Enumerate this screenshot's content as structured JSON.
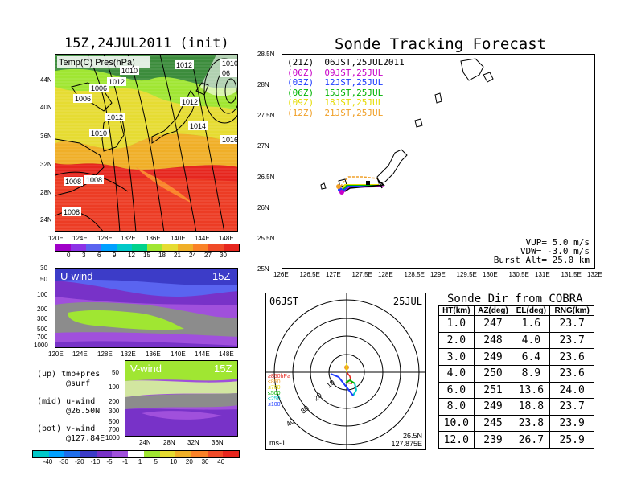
{
  "titles": {
    "map_init": "15Z,24JUL2011 (init)",
    "track": "Sonde Tracking Forecast",
    "cobra": "Sonde Dir from COBRA"
  },
  "map_panel": {
    "label": "Temp(C) Pres(hPa)",
    "isobar_labels": [
      "1012",
      "1010",
      "1012",
      "1006",
      "1006",
      "1012",
      "1010",
      "1008",
      "1008",
      "1012",
      "1014",
      "1010",
      "1016",
      "06",
      "1008"
    ],
    "xticks": [
      "120E",
      "124E",
      "128E",
      "132E",
      "136E",
      "140E",
      "144E",
      "148E"
    ],
    "yticks": [
      "44N",
      "40N",
      "36N",
      "32N",
      "28N",
      "24N"
    ],
    "colorbar": [
      "0",
      "3",
      "6",
      "9",
      "12",
      "15",
      "18",
      "21",
      "24",
      "27",
      "30"
    ],
    "colorbar_colors": [
      "#a000c8",
      "#8c32e6",
      "#5a64f0",
      "#00a0ff",
      "#00c8c8",
      "#00d28c",
      "#a0e632",
      "#e6dc32",
      "#f0af28",
      "#fa8228",
      "#f04b28",
      "#e6261e"
    ]
  },
  "uwind_panel": {
    "label": "U-wind",
    "time": "15Z",
    "yticks": [
      "30",
      "50",
      "100",
      "200",
      "300",
      "500",
      "700",
      "1000"
    ],
    "xticks": [
      "120E",
      "124E",
      "128E",
      "132E",
      "136E",
      "140E",
      "144E",
      "148E"
    ]
  },
  "vwind_panel": {
    "label": "V-wind",
    "time": "15Z",
    "yticks": [
      "50",
      "100",
      "200",
      "300",
      "500",
      "700",
      "1000"
    ],
    "xticks": [
      "24N",
      "28N",
      "32N",
      "36N"
    ],
    "colorbar": [
      "-40",
      "-30",
      "-20",
      "-10",
      "-5",
      "-1",
      "1",
      "5",
      "10",
      "20",
      "30",
      "40"
    ],
    "colorbar_colors": [
      "#00c8c8",
      "#00a0ff",
      "#1e6eeb",
      "#3c3cc8",
      "#7832c8",
      "#a050dc",
      "#ffffff",
      "#a0e632",
      "#e6dc32",
      "#f0af28",
      "#fa8228",
      "#f04b28",
      "#e6261e"
    ]
  },
  "legend_text": [
    {
      "a": "(up) tmp+pres",
      "b": "@surf"
    },
    {
      "a": "(mid) u-wind",
      "b": "@26.50N"
    },
    {
      "a": "(bot) v-wind",
      "b": "@127.84E"
    }
  ],
  "track_panel": {
    "legend": [
      {
        "label": "(21Z)  06JST,25JUL2011",
        "color": "#000000"
      },
      {
        "label": "(00Z)  09JST,25JUL",
        "color": "#c800c8"
      },
      {
        "label": "(03Z)  12JST,25JUL",
        "color": "#1e3cff"
      },
      {
        "label": "(06Z)  15JST,25JUL",
        "color": "#00b400"
      },
      {
        "label": "(09Z)  18JST,25JUL",
        "color": "#e6dc00"
      },
      {
        "label": "(12Z)  21JST,25JUL",
        "color": "#f0a028"
      }
    ],
    "xticks": [
      "126E",
      "126.5E",
      "127E",
      "127.5E",
      "128E",
      "128.5E",
      "129E",
      "129.5E",
      "130E",
      "130.5E",
      "131E",
      "131.5E",
      "132E"
    ],
    "yticks": [
      "28.5N",
      "28N",
      "27.5N",
      "27N",
      "26.5N",
      "26N",
      "25.5N",
      "25N"
    ],
    "params": [
      "VUP= 5.0 m/s",
      "VDW= -3.0 m/s",
      "Burst Alt= 25.0 km"
    ]
  },
  "polar_panel": {
    "time_left": "06JST",
    "date_right": "25JUL",
    "lat": "26.5N",
    "lon": "127.875E",
    "unit": "ms-1",
    "ring_labels": [
      "10",
      "20",
      "30",
      "40"
    ],
    "levels": [
      {
        "label": "≥850hPa",
        "color": "#e6261e"
      },
      {
        "label": "≤850",
        "color": "#f0a028"
      },
      {
        "label": "≤700",
        "color": "#e6dc00"
      },
      {
        "label": "≤500",
        "color": "#00b400"
      },
      {
        "label": "≤250",
        "color": "#00c8c8"
      },
      {
        "label": "≤100",
        "color": "#1e3cff"
      }
    ]
  },
  "chart_data": {
    "type": "table",
    "title": "Sonde Dir from COBRA",
    "columns": [
      "HT(km)",
      "AZ(deg)",
      "EL(deg)",
      "RNG(km)"
    ],
    "rows": [
      [
        "1.0",
        "247",
        "1.6",
        "23.7"
      ],
      [
        "2.0",
        "248",
        "4.0",
        "23.7"
      ],
      [
        "3.0",
        "249",
        "6.4",
        "23.6"
      ],
      [
        "4.0",
        "250",
        "8.9",
        "23.6"
      ],
      [
        "6.0",
        "251",
        "13.6",
        "24.0"
      ],
      [
        "8.0",
        "249",
        "18.8",
        "23.7"
      ],
      [
        "10.0",
        "245",
        "23.8",
        "23.9"
      ],
      [
        "12.0",
        "239",
        "26.7",
        "25.9"
      ]
    ]
  }
}
